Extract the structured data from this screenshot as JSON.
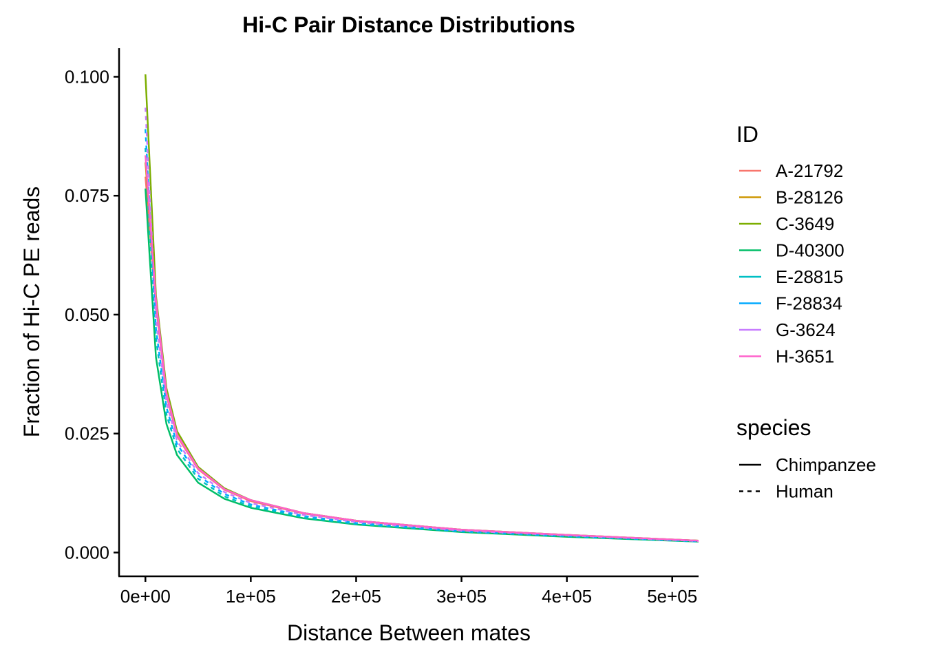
{
  "chart_data": {
    "type": "line",
    "title": "Hi-C Pair Distance Distributions",
    "xlabel": "Distance Between mates",
    "ylabel": "Fraction of Hi-C PE reads",
    "xlim": [
      -25000,
      525000
    ],
    "ylim": [
      -0.005,
      0.106
    ],
    "x_ticks": [
      {
        "value": 0,
        "label": "0e+00"
      },
      {
        "value": 100000,
        "label": "1e+05"
      },
      {
        "value": 200000,
        "label": "2e+05"
      },
      {
        "value": 300000,
        "label": "3e+05"
      },
      {
        "value": 400000,
        "label": "4e+05"
      },
      {
        "value": 500000,
        "label": "5e+05"
      }
    ],
    "y_ticks": [
      {
        "value": 0.0,
        "label": "0.000"
      },
      {
        "value": 0.025,
        "label": "0.025"
      },
      {
        "value": 0.05,
        "label": "0.050"
      },
      {
        "value": 0.075,
        "label": "0.075"
      },
      {
        "value": 0.1,
        "label": "0.100"
      }
    ],
    "grid": false,
    "legend_position": "right",
    "color_legend": {
      "title": "ID",
      "entries": [
        {
          "label": "A-21792",
          "color": "#F8766D"
        },
        {
          "label": "B-28126",
          "color": "#CD9600"
        },
        {
          "label": "C-3649",
          "color": "#7CAE00"
        },
        {
          "label": "D-40300",
          "color": "#00BE67"
        },
        {
          "label": "E-28815",
          "color": "#00BFC4"
        },
        {
          "label": "F-28834",
          "color": "#00A9FF"
        },
        {
          "label": "G-3624",
          "color": "#C77CFF"
        },
        {
          "label": "H-3651",
          "color": "#FF61CC"
        }
      ]
    },
    "linetype_legend": {
      "title": "species",
      "entries": [
        {
          "label": "Chimpanzee",
          "linetype": "solid"
        },
        {
          "label": "Human",
          "linetype": "dashed"
        }
      ]
    },
    "series": [
      {
        "name": "A-21792",
        "species": "Chimpanzee",
        "color": "#F8766D",
        "linetype": "solid",
        "x": [
          0,
          10000,
          20000,
          30000,
          50000,
          75000,
          100000,
          150000,
          200000,
          300000,
          400000,
          525000
        ],
        "y": [
          0.079,
          0.052,
          0.033,
          0.0245,
          0.0175,
          0.0132,
          0.0108,
          0.0082,
          0.0066,
          0.0047,
          0.0036,
          0.0025
        ]
      },
      {
        "name": "B-28126",
        "species": "Chimpanzee",
        "color": "#CD9600",
        "linetype": "solid",
        "x": [
          0,
          10000,
          20000,
          30000,
          50000,
          75000,
          100000,
          150000,
          200000,
          300000,
          400000,
          525000
        ],
        "y": [
          0.082,
          0.053,
          0.034,
          0.025,
          0.0178,
          0.0134,
          0.011,
          0.0083,
          0.0067,
          0.0048,
          0.0037,
          0.0025
        ]
      },
      {
        "name": "C-3649",
        "species": "Chimpanzee",
        "color": "#7CAE00",
        "linetype": "solid",
        "x": [
          0,
          10000,
          20000,
          30000,
          50000,
          75000,
          100000,
          150000,
          200000,
          300000,
          400000,
          525000
        ],
        "y": [
          0.1005,
          0.054,
          0.0345,
          0.0255,
          0.018,
          0.0135,
          0.011,
          0.0083,
          0.0067,
          0.0048,
          0.0037,
          0.0025
        ]
      },
      {
        "name": "D-40300",
        "species": "Chimpanzee",
        "color": "#00BE67",
        "linetype": "solid",
        "x": [
          0,
          10000,
          20000,
          30000,
          50000,
          75000,
          100000,
          150000,
          200000,
          300000,
          400000,
          525000
        ],
        "y": [
          0.0765,
          0.041,
          0.027,
          0.0205,
          0.0147,
          0.0113,
          0.0094,
          0.0072,
          0.0059,
          0.0043,
          0.0033,
          0.0023
        ]
      },
      {
        "name": "E-28815",
        "species": "Human",
        "color": "#00BFC4",
        "linetype": "dashed",
        "x": [
          0,
          10000,
          20000,
          30000,
          50000,
          75000,
          100000,
          150000,
          200000,
          300000,
          400000,
          525000
        ],
        "y": [
          0.085,
          0.045,
          0.029,
          0.0218,
          0.0155,
          0.0118,
          0.0097,
          0.0074,
          0.006,
          0.0044,
          0.0034,
          0.0023
        ]
      },
      {
        "name": "F-28834",
        "species": "Human",
        "color": "#00A9FF",
        "linetype": "dashed",
        "x": [
          0,
          10000,
          20000,
          30000,
          50000,
          75000,
          100000,
          150000,
          200000,
          300000,
          400000,
          525000
        ],
        "y": [
          0.089,
          0.047,
          0.0305,
          0.0228,
          0.0162,
          0.0123,
          0.0101,
          0.0077,
          0.0062,
          0.0045,
          0.0035,
          0.0024
        ]
      },
      {
        "name": "G-3624",
        "species": "Human",
        "color": "#C77CFF",
        "linetype": "dashed",
        "x": [
          0,
          10000,
          20000,
          30000,
          50000,
          75000,
          100000,
          150000,
          200000,
          300000,
          400000,
          525000
        ],
        "y": [
          0.0935,
          0.049,
          0.0315,
          0.0235,
          0.0167,
          0.0127,
          0.0104,
          0.0079,
          0.0064,
          0.0046,
          0.0036,
          0.0024
        ]
      },
      {
        "name": "H-3651",
        "species": "Chimpanzee",
        "color": "#FF61CC",
        "linetype": "solid",
        "x": [
          0,
          10000,
          20000,
          30000,
          50000,
          75000,
          100000,
          150000,
          200000,
          300000,
          400000,
          525000
        ],
        "y": [
          0.0835,
          0.053,
          0.0335,
          0.0248,
          0.0177,
          0.0133,
          0.011,
          0.0083,
          0.0067,
          0.0048,
          0.0037,
          0.0025
        ]
      }
    ]
  }
}
